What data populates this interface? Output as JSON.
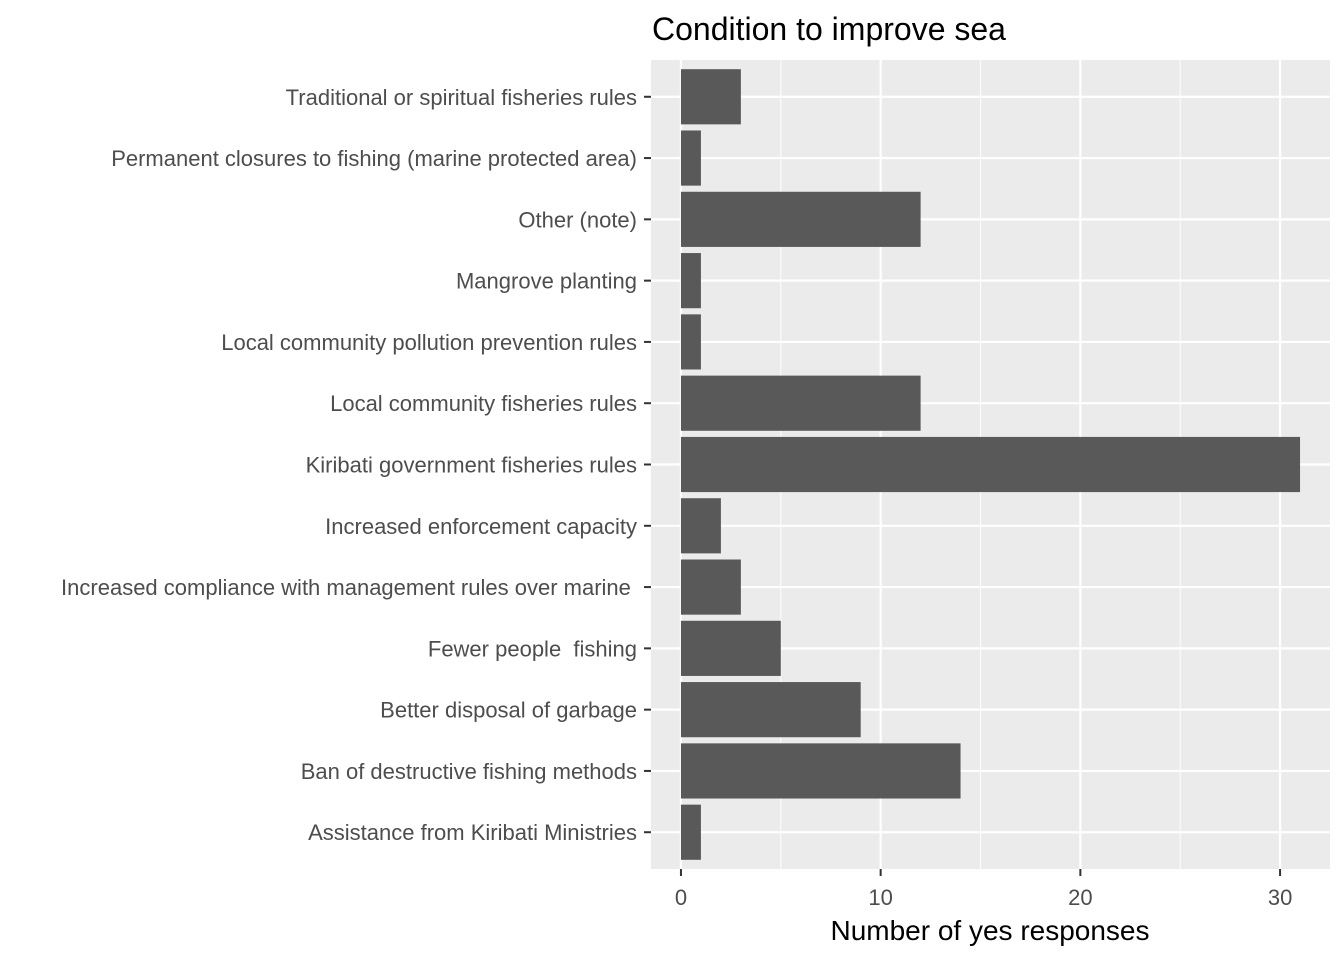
{
  "chart_data": {
    "type": "bar",
    "orientation": "horizontal",
    "title": "Condition to improve sea",
    "xlabel": "Number of yes responses",
    "ylabel": "",
    "xlim": [
      -1.5,
      32.5
    ],
    "xticks": [
      0,
      10,
      20,
      30
    ],
    "categories": [
      "Traditional or spiritual fisheries rules",
      "Permanent closures to fishing (marine protected area)",
      "Other (note)",
      "Mangrove planting",
      "Local community pollution prevention rules",
      "Local community fisheries rules",
      "Kiribati government fisheries rules",
      "Increased enforcement capacity",
      "Increased compliance with management rules over marine ",
      "Fewer people  fishing",
      "Better disposal of garbage",
      "Ban of destructive fishing methods",
      "Assistance from Kiribati Ministries"
    ],
    "values": [
      3,
      1,
      12,
      1,
      1,
      12,
      31,
      2,
      3,
      5,
      9,
      14,
      1
    ],
    "grid": true,
    "legend": "none"
  },
  "colors": {
    "panel_background": "#ebebeb",
    "grid_major": "#ffffff",
    "bar_fill": "#595959",
    "tick_text": "#4d4d4d",
    "title_text": "#000000"
  }
}
